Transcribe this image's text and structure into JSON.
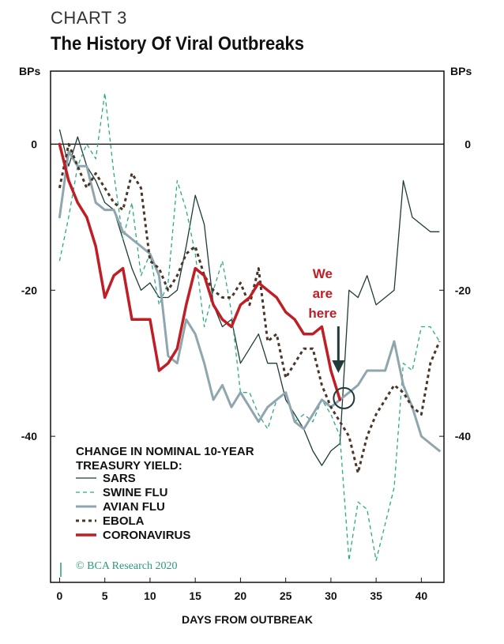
{
  "header": {
    "kicker": "CHART 3",
    "title": "The History Of Viral Outbreaks"
  },
  "colors": {
    "sars": "#1f3b3a",
    "swine_flu": "#2bab83",
    "avian_flu": "#8fa6af",
    "ebola": "#4a3728",
    "coronavirus": "#bf1e24",
    "annotation": "#bf1e24",
    "credit": "#2a9b78"
  },
  "chart_data": {
    "type": "line",
    "title": "The History Of Viral Outbreaks",
    "xlabel": "DAYS FROM OUTBREAK",
    "ylabel_left": "BPs",
    "ylabel_right": "BPs",
    "xlim": [
      -1,
      42.5
    ],
    "ylim": [
      -60,
      10
    ],
    "x_ticks": [
      0,
      5,
      10,
      15,
      20,
      25,
      30,
      35,
      40
    ],
    "y_ticks": [
      0,
      -20,
      -40
    ],
    "zero_line": true,
    "grid": false,
    "legend_title": "CHANGE IN NOMINAL 10-YEAR TREASURY YIELD:",
    "legend_position": "bottom-left",
    "series": [
      {
        "name": "SARS",
        "key": "sars",
        "style": "solid-thin",
        "x": [
          0,
          1,
          2,
          3,
          4,
          5,
          6,
          7,
          8,
          9,
          10,
          11,
          12,
          13,
          14,
          15,
          16,
          17,
          18,
          19,
          20,
          21,
          22,
          23,
          24,
          25,
          26,
          27,
          28,
          29,
          30,
          31,
          32,
          33,
          34,
          35,
          36,
          37,
          38,
          39,
          40,
          41,
          42
        ],
        "y": [
          2,
          -3,
          1,
          -3,
          -5,
          -8,
          -9,
          -13,
          -17,
          -20,
          -19,
          -21,
          -21,
          -20,
          -14,
          -7,
          -11,
          -22,
          -25,
          -24,
          -30,
          -28,
          -26,
          -30,
          -30,
          -35,
          -37,
          -39,
          -42,
          -44,
          -42,
          -41,
          -20,
          -21,
          -18,
          -22,
          -21,
          -20,
          -5,
          -10,
          -11,
          -12,
          -12
        ]
      },
      {
        "name": "SWINE FLU",
        "key": "swine_flu",
        "style": "dashed",
        "x": [
          0,
          1,
          2,
          3,
          4,
          5,
          6,
          7,
          8,
          9,
          10,
          11,
          12,
          13,
          14,
          15,
          16,
          17,
          18,
          19,
          20,
          21,
          22,
          23,
          24,
          25,
          26,
          27,
          28,
          29,
          30,
          31,
          32,
          33,
          34,
          35,
          36,
          37,
          38,
          39,
          40,
          41,
          42
        ],
        "y": [
          -16,
          -10,
          -3,
          0,
          -2,
          7,
          -4,
          -13,
          -8,
          -18,
          -15,
          -22,
          -19,
          -5,
          -9,
          -15,
          -25,
          -20,
          -16,
          -23,
          -34,
          -34,
          -37,
          -39,
          -35,
          -34,
          -38,
          -37,
          -38,
          -35,
          -37,
          -40,
          -57,
          -49,
          -50,
          -57,
          -52,
          -47,
          -30,
          -31,
          -25,
          -25,
          -27
        ]
      },
      {
        "name": "AVIAN FLU",
        "key": "avian_flu",
        "style": "solid-thick-grey",
        "x": [
          0,
          1,
          2,
          3,
          4,
          5,
          6,
          7,
          8,
          9,
          10,
          11,
          12,
          13,
          14,
          15,
          16,
          17,
          18,
          19,
          20,
          21,
          22,
          23,
          24,
          25,
          26,
          27,
          28,
          29,
          30,
          31,
          32,
          33,
          34,
          35,
          36,
          37,
          38,
          39,
          40,
          41,
          42
        ],
        "y": [
          -10,
          -1,
          -3,
          -3,
          -8,
          -9,
          -9,
          -12,
          -13,
          -14,
          -15,
          -18,
          -29,
          -30,
          -24,
          -26,
          -30,
          -35,
          -33,
          -36,
          -34,
          -36,
          -38,
          -36,
          -35,
          -34,
          -38,
          -39,
          -37,
          -35,
          -36,
          -35,
          -34,
          -33,
          -31,
          -31,
          -31,
          -27,
          -33,
          -36,
          -40,
          -41,
          -42
        ]
      },
      {
        "name": "EBOLA",
        "key": "ebola",
        "style": "dotted-thick",
        "x": [
          0,
          1,
          2,
          3,
          4,
          5,
          6,
          7,
          8,
          9,
          10,
          11,
          12,
          13,
          14,
          15,
          16,
          17,
          18,
          19,
          20,
          21,
          22,
          23,
          24,
          25,
          26,
          27,
          28,
          29,
          30,
          31,
          32,
          33,
          34,
          35,
          36,
          37,
          38,
          39,
          40,
          41,
          42
        ],
        "y": [
          -6,
          0,
          -3,
          -6,
          -4,
          -6,
          -8,
          -9,
          -4,
          -6,
          -16,
          -17,
          -20,
          -18,
          -15,
          -14,
          -18,
          -20,
          -21,
          -21,
          -19,
          -22,
          -17,
          -27,
          -26,
          -32,
          -30,
          -28,
          -28,
          -33,
          -36,
          -38,
          -40,
          -45,
          -40,
          -37,
          -35,
          -33,
          -34,
          -36,
          -37,
          -30,
          -27
        ]
      },
      {
        "name": "CORONAVIRUS",
        "key": "coronavirus",
        "style": "solid-thick-red",
        "x": [
          0,
          1,
          2,
          3,
          4,
          5,
          6,
          7,
          8,
          9,
          10,
          11,
          12,
          13,
          14,
          15,
          16,
          17,
          18,
          19,
          20,
          21,
          22,
          23,
          24,
          25,
          26,
          27,
          28,
          29,
          30,
          31
        ],
        "y": [
          0,
          -5,
          -8,
          -10,
          -14,
          -21,
          -18,
          -17,
          -24,
          -24,
          -24,
          -31,
          -30,
          -28,
          -22,
          -17,
          -18,
          -22,
          -24,
          -25,
          -22,
          -21,
          -19,
          -20,
          -21,
          -23,
          -24,
          -26,
          -26,
          -25,
          -31,
          -35
        ]
      }
    ],
    "annotations": {
      "we_are_here_line1": "We",
      "we_are_here_line2": "are",
      "we_are_here_line3": "here"
    }
  },
  "legend": {
    "title_line1": "CHANGE IN NOMINAL 10-YEAR",
    "title_line2": "TREASURY YIELD:",
    "items": [
      {
        "label": "SARS"
      },
      {
        "label": "SWINE FLU"
      },
      {
        "label": "AVIAN FLU"
      },
      {
        "label": "EBOLA"
      },
      {
        "label": "CORONAVIRUS"
      }
    ]
  },
  "credit": {
    "text": "© BCA Research 2020"
  }
}
